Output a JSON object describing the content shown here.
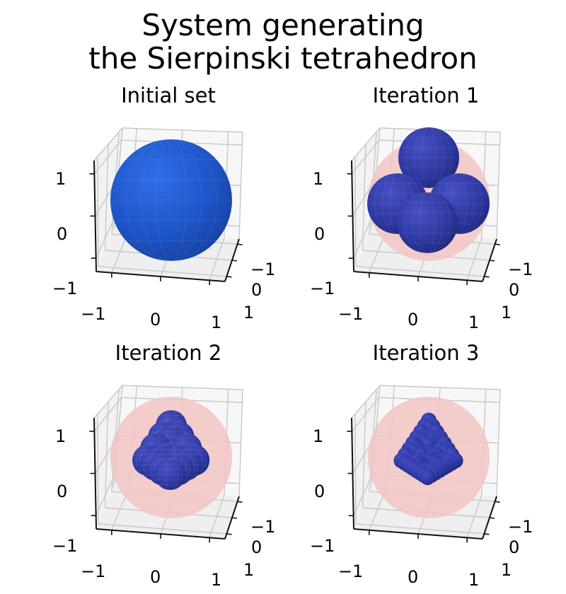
{
  "figure": {
    "title_line1": "System generating",
    "title_line2": "the Sierpinski tetrahedron"
  },
  "panels": [
    {
      "title": "Initial set",
      "iteration": 0
    },
    {
      "title": "Iteration 1",
      "iteration": 1
    },
    {
      "title": "Iteration 2",
      "iteration": 2
    },
    {
      "title": "Iteration 3",
      "iteration": 3
    }
  ],
  "axes": {
    "x_ticks": [
      "−1",
      "0",
      "1"
    ],
    "y_ticks": [
      "−1",
      "0",
      "1"
    ],
    "z_ticks": [
      "−1",
      "0",
      "1"
    ]
  },
  "colors": {
    "initial_sphere": "#1f4fc9",
    "child_spheres": "#2a3aa0",
    "previous_set_halo": "#f2c4c4",
    "pane": "#f2f2f2",
    "grid": "#c8c8c8"
  }
}
